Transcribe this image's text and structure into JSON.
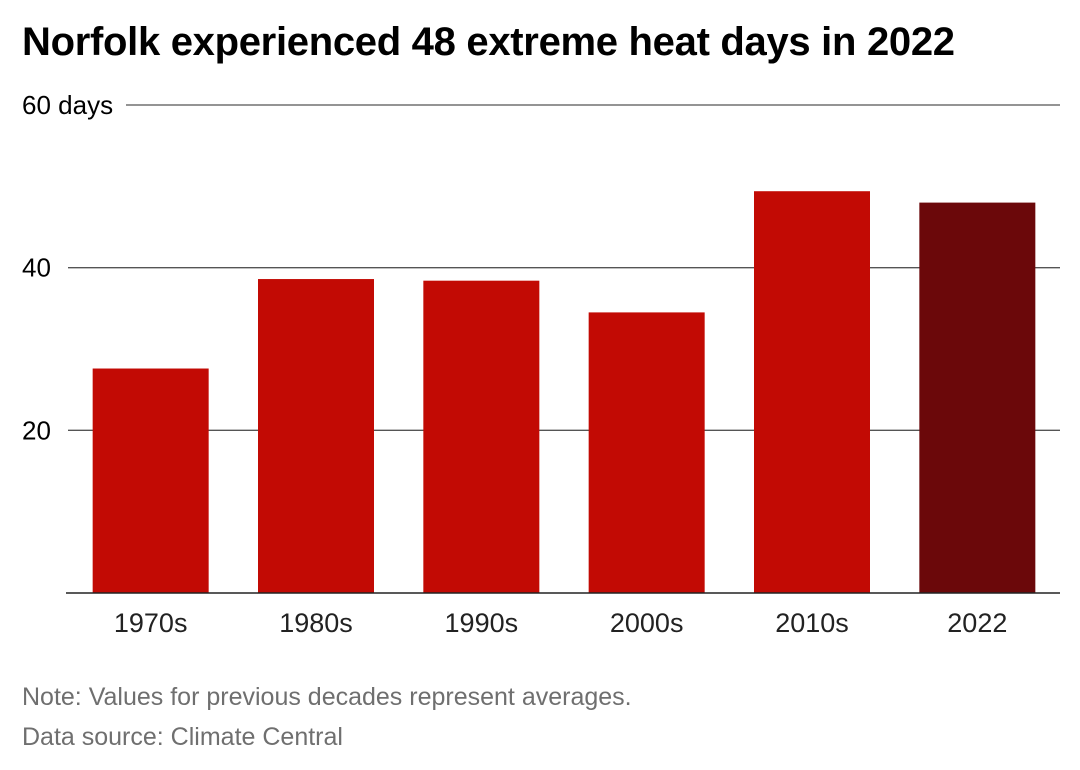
{
  "title": "Norfolk experienced 48 extreme heat days in 2022",
  "chart_data": {
    "type": "bar",
    "title": "Norfolk experienced 48 extreme heat days in 2022",
    "categories": [
      "1970s",
      "1980s",
      "1990s",
      "2000s",
      "2010s",
      "2022"
    ],
    "values": [
      27.6,
      38.6,
      38.4,
      34.5,
      49.4,
      48
    ],
    "ylim": [
      0,
      60
    ],
    "yticks": [
      20,
      40,
      60
    ],
    "ytick_labels": [
      "20",
      "40",
      "60 days"
    ],
    "grid": true,
    "colors": {
      "bar": "#c20a04",
      "highlight": "#6b080a",
      "grid": "#555555",
      "axis": "#222222"
    },
    "highlight_category": "2022"
  },
  "notes": {
    "note": "Note: Values for previous decades represent averages.",
    "source": "Data source: Climate Central"
  }
}
